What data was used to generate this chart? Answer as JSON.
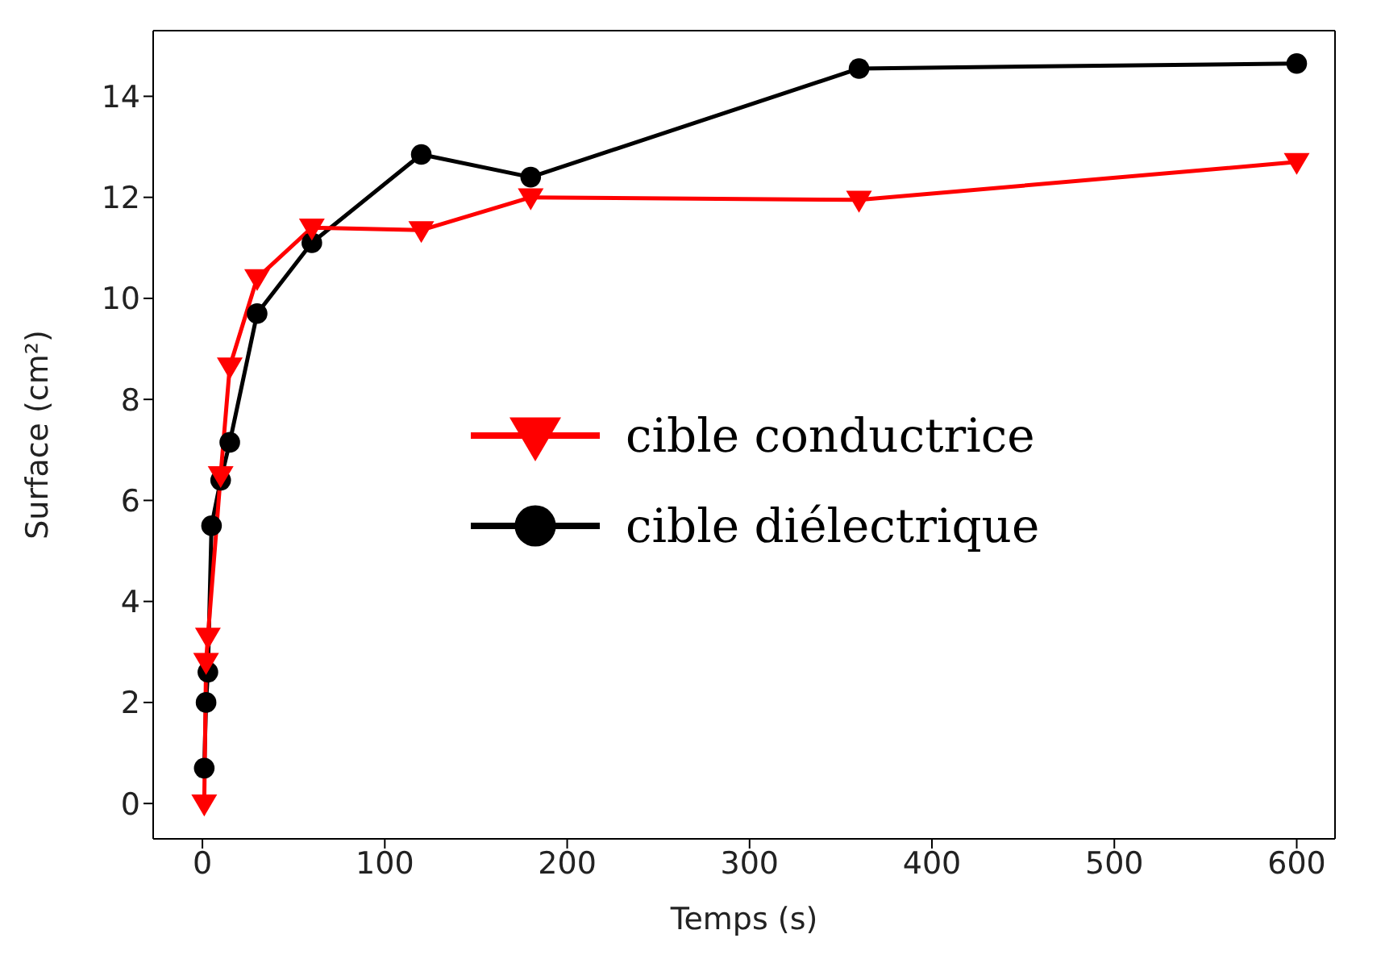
{
  "chart_data": {
    "type": "line",
    "xlabel": "Temps (s)",
    "ylabel": "Surface (cm²)",
    "xlim": [
      -27,
      621
    ],
    "xticks": [
      0,
      100,
      200,
      300,
      400,
      500,
      600
    ],
    "ylim": [
      -0.7,
      15.3
    ],
    "yticks": [
      0,
      2,
      4,
      6,
      8,
      10,
      12,
      14
    ],
    "legend": "center",
    "line_style": "solid",
    "series": [
      {
        "name": "cible conductrice",
        "color": "#ff0000",
        "marker": "triangle",
        "x": [
          1,
          2,
          3,
          10,
          15,
          30,
          60,
          120,
          180,
          360,
          600
        ],
        "values": [
          0,
          2.8,
          3.3,
          6.5,
          8.65,
          10.4,
          11.4,
          11.35,
          12.0,
          11.95,
          12.7
        ]
      },
      {
        "name": "cible diélectrique",
        "color": "#000000",
        "marker": "circle",
        "x": [
          1,
          2,
          3,
          5,
          10,
          15,
          30,
          60,
          120,
          180,
          360,
          600
        ],
        "values": [
          0.7,
          2.0,
          2.6,
          5.5,
          6.4,
          7.15,
          9.7,
          11.1,
          12.85,
          12.4,
          14.55,
          14.65
        ]
      }
    ]
  }
}
